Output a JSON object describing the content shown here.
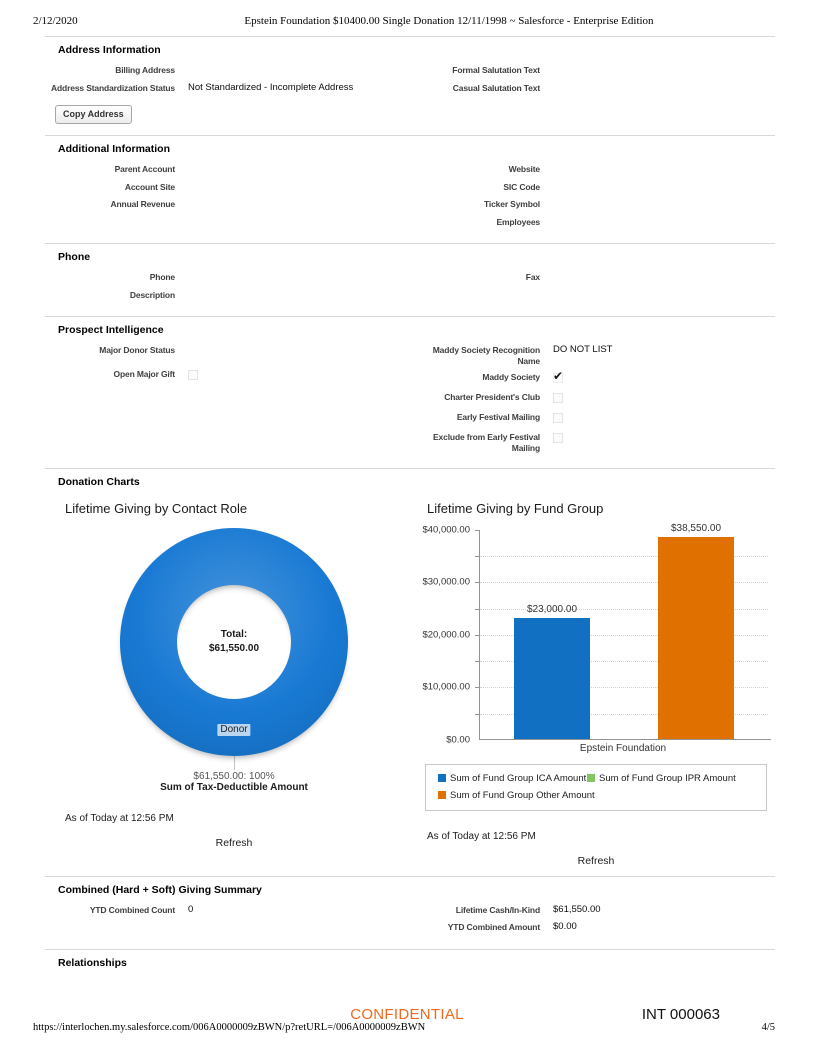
{
  "header": {
    "date": "2/12/2020",
    "title": "Epstein Foundation $10400.00 Single Donation 12/11/1998 ~ Salesforce - Enterprise Edition"
  },
  "footer": {
    "confidential": "CONFIDENTIAL",
    "bates": "INT 000063",
    "url": "https://interlochen.my.salesforce.com/006A0000009zBWN/p?retURL=/006A0000009zBWN",
    "page": "4/5"
  },
  "colors": {
    "confidential_stamp": "#F1691D",
    "donut_blue": "#1879D3",
    "bar_blue": "#1170C2",
    "legend_green": "#84C561",
    "bar_orange": "#E07000"
  },
  "sections": {
    "address": {
      "title": "Address Information",
      "left": [
        {
          "label": "Billing Address",
          "value": ""
        },
        {
          "label": "Address Standardization Status",
          "value": "Not Standardized - Incomplete Address"
        }
      ],
      "right": [
        {
          "label": "Formal Salutation Text",
          "value": ""
        },
        {
          "label": "Casual Salutation Text",
          "value": ""
        }
      ],
      "copy_button": "Copy Address"
    },
    "additional": {
      "title": "Additional Information",
      "left": [
        {
          "label": "Parent Account",
          "value": ""
        },
        {
          "label": "Account Site",
          "value": ""
        },
        {
          "label": "Annual Revenue",
          "value": ""
        }
      ],
      "right": [
        {
          "label": "Website",
          "value": ""
        },
        {
          "label": "SIC Code",
          "value": ""
        },
        {
          "label": "Ticker Symbol",
          "value": ""
        },
        {
          "label": "Employees",
          "value": ""
        }
      ]
    },
    "phone": {
      "title": "Phone",
      "left": [
        {
          "label": "Phone",
          "value": ""
        },
        {
          "label": "Description",
          "value": ""
        }
      ],
      "right": [
        {
          "label": "Fax",
          "value": ""
        }
      ]
    },
    "prospect": {
      "title": "Prospect Intelligence",
      "left": [
        {
          "label": "Major Donor Status",
          "value": ""
        },
        {
          "label": "Open Major Gift",
          "checked": false
        }
      ],
      "right": [
        {
          "label": "Maddy Society Recognition Name",
          "value": "DO NOT LIST"
        },
        {
          "label": "Maddy Society",
          "checked": true
        },
        {
          "label": "Charter President's Club",
          "checked": false
        },
        {
          "label": "Early Festival Mailing",
          "checked": false
        },
        {
          "label": "Exclude from Early Festival Mailing",
          "checked": false
        }
      ]
    },
    "charts": {
      "title": "Donation Charts"
    },
    "combined": {
      "title": "Combined (Hard + Soft) Giving Summary",
      "left": [
        {
          "label": "YTD Combined Count",
          "value": "0"
        }
      ],
      "right": [
        {
          "label": "Lifetime Cash/In-Kind",
          "value": "$61,550.00"
        },
        {
          "label": "YTD Combined Amount",
          "value": "$0.00"
        }
      ]
    },
    "relationships": {
      "title": "Relationships"
    }
  },
  "chart_data": [
    {
      "type": "pie",
      "donut": true,
      "title": "Lifetime Giving by Contact Role",
      "slices": [
        {
          "label": "Donor",
          "value": 61550,
          "percent": 100,
          "color": "#1879D3"
        }
      ],
      "total": 61550,
      "center_label": "Total:",
      "center_value": "$61,550.00",
      "callout": "$61,550.00: 100%",
      "series_label": "Sum of Tax-Deductible Amount",
      "as_of": "As of Today at 12:56 PM",
      "refresh_label": "Refresh"
    },
    {
      "type": "bar",
      "title": "Lifetime Giving by Fund Group",
      "categories": [
        "Epstein Foundation"
      ],
      "series": [
        {
          "name": "Sum of Fund Group ICA Amount",
          "values": [
            23000
          ],
          "color": "#1170C2",
          "data_label": "$23,000.00"
        },
        {
          "name": "Sum of Fund Group IPR Amount",
          "values": [
            0
          ],
          "color": "#84C561"
        },
        {
          "name": "Sum of Fund Group Other Amount",
          "values": [
            38550
          ],
          "color": "#E07000",
          "data_label": "$38,550.00"
        }
      ],
      "ylim": [
        0,
        40000
      ],
      "ytick_step": 10000,
      "grid_step": 5000,
      "ytick_labels": [
        "$0.00",
        "$10,000.00",
        "$20,000.00",
        "$30,000.00",
        "$40,000.00"
      ],
      "grid": true,
      "legend_position": "bottom",
      "as_of": "As of Today at 12:56 PM",
      "refresh_label": "Refresh"
    }
  ]
}
